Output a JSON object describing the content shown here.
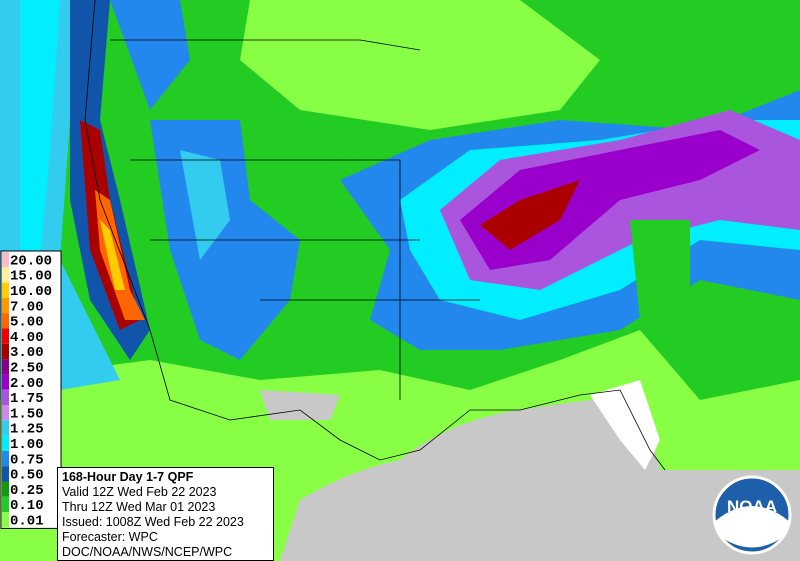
{
  "legend": {
    "levels": [
      {
        "label": "20.00",
        "color": "#ffbbcc"
      },
      {
        "label": "15.00",
        "color": "#ffee99"
      },
      {
        "label": "10.00",
        "color": "#ffcc00"
      },
      {
        "label": "7.00",
        "color": "#ff9900"
      },
      {
        "label": "5.00",
        "color": "#ff6600"
      },
      {
        "label": "4.00",
        "color": "#ee0000"
      },
      {
        "label": "3.00",
        "color": "#aa0000"
      },
      {
        "label": "2.50",
        "color": "#880088"
      },
      {
        "label": "2.00",
        "color": "#9900cc"
      },
      {
        "label": "1.75",
        "color": "#aa55dd"
      },
      {
        "label": "1.50",
        "color": "#cc88ee"
      },
      {
        "label": "1.25",
        "color": "#33ccee"
      },
      {
        "label": "1.00",
        "color": "#00eeff"
      },
      {
        "label": "0.75",
        "color": "#2288ee"
      },
      {
        "label": "0.50",
        "color": "#1155aa"
      },
      {
        "label": "0.25",
        "color": "#119911"
      },
      {
        "label": "0.10",
        "color": "#22cc22"
      },
      {
        "label": "0.01",
        "color": "#88ff44"
      }
    ]
  },
  "info": {
    "title": "168-Hour Day 1-7 QPF",
    "lines": [
      "Valid 12Z Wed Feb 22 2023",
      "Thru 12Z Wed Mar 01 2023",
      "Issued: 1008Z Wed Feb 22 2023",
      "Forecaster: WPC",
      "DOC/NOAA/NWS/NCEP/WPC"
    ]
  },
  "logo": {
    "text": "NOAA"
  }
}
